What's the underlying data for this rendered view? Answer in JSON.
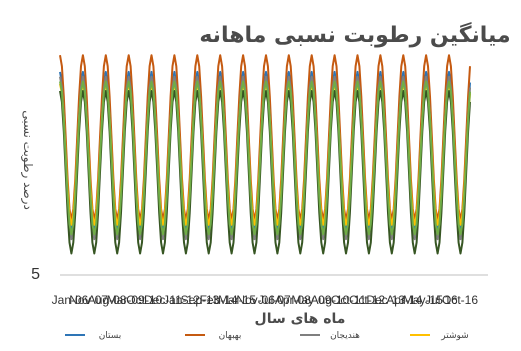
{
  "chart_data": {
    "type": "line",
    "title": "میانگین رطوبت نسبی ماهانه",
    "xlabel": "ماه های سال",
    "ylabel": "درصد رطوبت نسبی",
    "y_tick_labels": [
      "5"
    ],
    "ylim": [
      5,
      100
    ],
    "x_tick_labels": [
      "Jan-06",
      "Nov-07",
      "Aug-08",
      "Mar-09",
      "Oct-10",
      "Dec-11",
      "Jan-12",
      "Sep-13",
      "Feb-14",
      "Mar-15",
      "Nov-06",
      "Jul-07",
      "Apr-08",
      "May-09",
      "Aug-10",
      "Oct-11",
      "Oct-12",
      "Dec-13",
      "Apr-14",
      "May-15",
      "Jul-16",
      "Oct-16"
    ],
    "grid": false,
    "legend_position": "bottom",
    "cycles": 18,
    "points_per_cycle": 12,
    "series": [
      {
        "name": "بستان",
        "color": "#2e75b6",
        "peak": 90,
        "trough": 24
      },
      {
        "name": "بهبهان",
        "color": "#c55a11",
        "peak": 97,
        "trough": 28
      },
      {
        "name": "هندیجان",
        "color": "#7f7f7f",
        "peak": 88,
        "trough": 20
      },
      {
        "name": "شوشتر",
        "color": "#ffc000",
        "peak": 85,
        "trough": 26
      },
      {
        "name": "",
        "color": "#375623",
        "peak": 82,
        "trough": 14
      },
      {
        "name": "",
        "color": "#70ad47",
        "peak": 86,
        "trough": 22
      }
    ]
  }
}
